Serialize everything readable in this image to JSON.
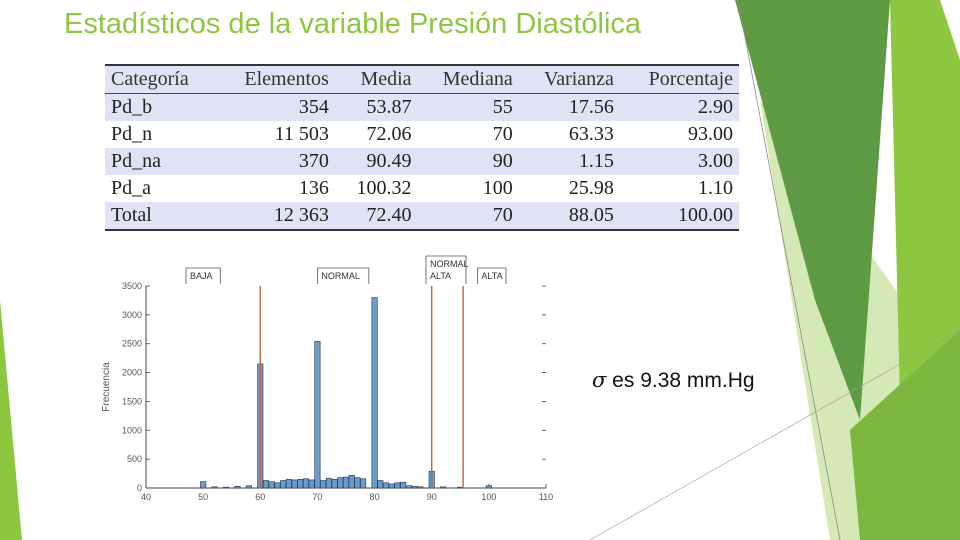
{
  "slide": {
    "title": "Estadísticos de la variable Presión Diastólica",
    "note_symbol": "σ",
    "note_text": " es 9.38 mm.Hg"
  },
  "table": {
    "headers": [
      "Categoría",
      "Elementos",
      "Media",
      "Mediana",
      "Varianza",
      "Porcentaje"
    ],
    "rows": [
      [
        "Pd_b",
        "354",
        "53.87",
        "55",
        "17.56",
        "2.90"
      ],
      [
        "Pd_n",
        "11 503",
        "72.06",
        "70",
        "63.33",
        "93.00"
      ],
      [
        "Pd_na",
        "370",
        "90.49",
        "90",
        "1.15",
        "3.00"
      ],
      [
        "Pd_a",
        "136",
        "100.32",
        "100",
        "25.98",
        "1.10"
      ],
      [
        "Total",
        "12 363",
        "72.40",
        "70",
        "88.05",
        "100.00"
      ]
    ]
  },
  "colors": {
    "accent_green": "#8dc63f",
    "bar_fill": "#6b9bc8",
    "threshold_line": "#b8693a",
    "table_stripe": "#dfe3f5"
  },
  "chart_data": {
    "type": "bar",
    "ylabel": "Frecuencia",
    "xlabel": "",
    "xlim": [
      40,
      110
    ],
    "ylim": [
      0,
      3500
    ],
    "x_ticks": [
      40,
      50,
      60,
      70,
      80,
      90,
      100,
      110
    ],
    "y_ticks": [
      0,
      500,
      1000,
      1500,
      2000,
      2500,
      3000,
      3500
    ],
    "bars": [
      {
        "x": 50,
        "y": 110
      },
      {
        "x": 52,
        "y": 20
      },
      {
        "x": 54,
        "y": 15
      },
      {
        "x": 56,
        "y": 30
      },
      {
        "x": 58,
        "y": 40
      },
      {
        "x": 60,
        "y": 2150
      },
      {
        "x": 61,
        "y": 130
      },
      {
        "x": 62,
        "y": 110
      },
      {
        "x": 63,
        "y": 90
      },
      {
        "x": 64,
        "y": 130
      },
      {
        "x": 65,
        "y": 150
      },
      {
        "x": 66,
        "y": 140
      },
      {
        "x": 67,
        "y": 150
      },
      {
        "x": 68,
        "y": 160
      },
      {
        "x": 69,
        "y": 140
      },
      {
        "x": 70,
        "y": 2540
      },
      {
        "x": 71,
        "y": 130
      },
      {
        "x": 72,
        "y": 170
      },
      {
        "x": 73,
        "y": 150
      },
      {
        "x": 74,
        "y": 180
      },
      {
        "x": 75,
        "y": 190
      },
      {
        "x": 76,
        "y": 220
      },
      {
        "x": 77,
        "y": 180
      },
      {
        "x": 78,
        "y": 160
      },
      {
        "x": 80,
        "y": 3300
      },
      {
        "x": 81,
        "y": 130
      },
      {
        "x": 82,
        "y": 90
      },
      {
        "x": 83,
        "y": 70
      },
      {
        "x": 84,
        "y": 90
      },
      {
        "x": 85,
        "y": 100
      },
      {
        "x": 86,
        "y": 40
      },
      {
        "x": 87,
        "y": 30
      },
      {
        "x": 88,
        "y": 20
      },
      {
        "x": 90,
        "y": 290
      },
      {
        "x": 92,
        "y": 20
      },
      {
        "x": 95,
        "y": 15
      },
      {
        "x": 100,
        "y": 40
      }
    ],
    "thresholds": [
      60,
      90,
      95.5
    ],
    "category_labels": [
      {
        "lines": [
          "BAJA"
        ],
        "x_from": 47,
        "x_to": 53
      },
      {
        "lines": [
          "NORMAL"
        ],
        "x_from": 70,
        "x_to": 79
      },
      {
        "lines": [
          "NORMAL",
          "ALTA"
        ],
        "x_from": 89,
        "x_to": 96
      },
      {
        "lines": [
          "ALTA"
        ],
        "x_from": 98,
        "x_to": 103
      }
    ]
  }
}
